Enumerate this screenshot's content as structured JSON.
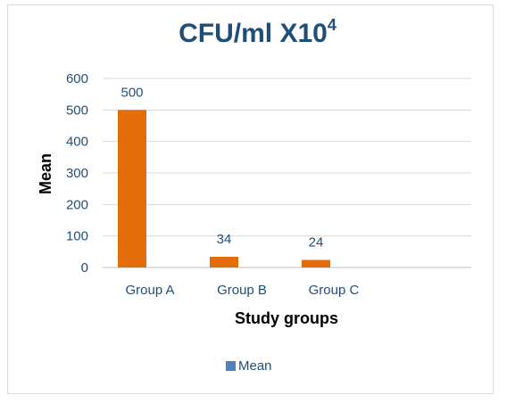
{
  "chart_data": {
    "type": "bar",
    "title_main": "CFU/ml X10",
    "title_sup": "4",
    "xlabel": "Study groups",
    "ylabel": "Mean",
    "categories": [
      "Group A",
      "Group B",
      "Group C"
    ],
    "series": [
      {
        "name": "Mean",
        "values": [
          500,
          34,
          24
        ],
        "color": "#e46c0a"
      }
    ],
    "data_labels": [
      "500",
      "34",
      "24"
    ],
    "yticks": [
      "0",
      "100",
      "200",
      "300",
      "400",
      "500",
      "600"
    ],
    "ylim": [
      0,
      600
    ],
    "grid": true,
    "legend_position": "bottom"
  }
}
